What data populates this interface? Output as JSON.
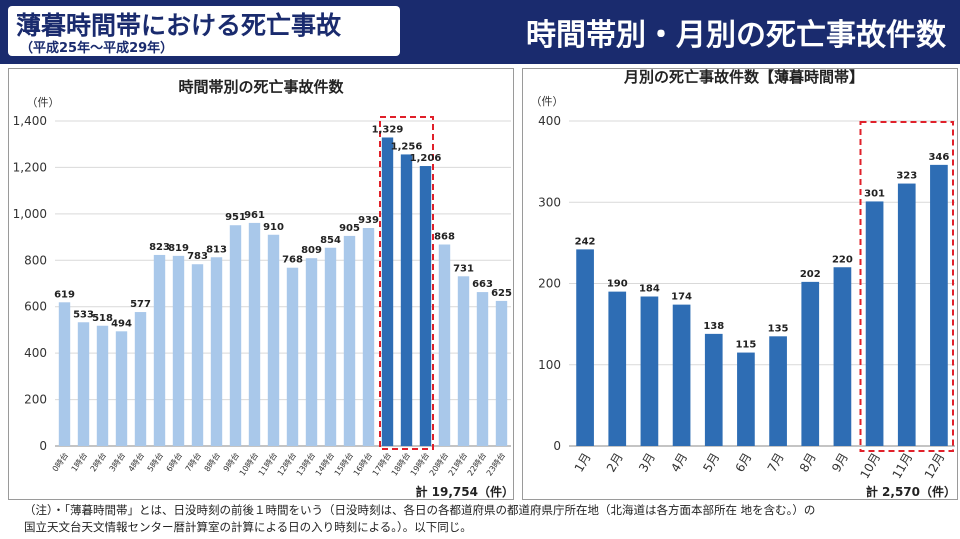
{
  "header": {
    "title": "薄暮時間帯における死亡事故",
    "subtitle": "（平成25年～平成29年）",
    "right_title": "時間帯別・月別の死亡事故件数"
  },
  "chart_data": [
    {
      "type": "bar",
      "title": "時間帯別の死亡事故件数",
      "ylabel": "（件）",
      "ylim": [
        0,
        1400
      ],
      "yticks": [
        0,
        200,
        400,
        600,
        800,
        1000,
        1200,
        1400
      ],
      "ytick_labels": [
        "0",
        "200",
        "400",
        "600",
        "800",
        "1,000",
        "1,200",
        "1,400"
      ],
      "categories": [
        "0時台",
        "1時台",
        "2時台",
        "3時台",
        "4時台",
        "5時台",
        "6時台",
        "7時台",
        "8時台",
        "9時台",
        "10時台",
        "11時台",
        "12時台",
        "13時台",
        "14時台",
        "15時台",
        "16時台",
        "17時台",
        "18時台",
        "19時台",
        "20時台",
        "21時台",
        "22時台",
        "23時台"
      ],
      "values": [
        619,
        533,
        518,
        494,
        577,
        823,
        819,
        783,
        813,
        951,
        961,
        910,
        768,
        809,
        854,
        905,
        939,
        1329,
        1256,
        1206,
        868,
        731,
        663,
        625
      ],
      "value_labels": [
        "619",
        "533",
        "518",
        "494",
        "577",
        "823",
        "819",
        "783",
        "813",
        "951",
        "961",
        "910",
        "768",
        "809",
        "854",
        "905",
        "939",
        "1,329",
        "1,256",
        "1,206",
        "868",
        "731",
        "663",
        "625"
      ],
      "highlight_indices": [
        17,
        18,
        19
      ],
      "total": "計 19,754（件）",
      "colors": {
        "normal": "#a9c8ea",
        "highlight": "#2e6db4",
        "box": "#e0202a"
      }
    },
    {
      "type": "bar",
      "title": "月別の死亡事故件数【薄暮時間帯】",
      "ylabel": "（件）",
      "ylim": [
        0,
        400
      ],
      "yticks": [
        0,
        100,
        200,
        300,
        400
      ],
      "ytick_labels": [
        "0",
        "100",
        "200",
        "300",
        "400"
      ],
      "categories": [
        "1月",
        "2月",
        "3月",
        "4月",
        "5月",
        "6月",
        "7月",
        "8月",
        "9月",
        "10月",
        "11月",
        "12月"
      ],
      "values": [
        242,
        190,
        184,
        174,
        138,
        115,
        135,
        202,
        220,
        301,
        323,
        346
      ],
      "value_labels": [
        "242",
        "190",
        "184",
        "174",
        "138",
        "115",
        "135",
        "202",
        "220",
        "301",
        "323",
        "346"
      ],
      "highlight_indices": [
        9,
        10,
        11
      ],
      "total": "計 2,570（件）",
      "colors": {
        "normal": "#2e6db4",
        "highlight": "#2e6db4",
        "box": "#e0202a"
      }
    }
  ],
  "note": {
    "line1": "（注）・「薄暮時間帯」とは、日没時刻の前後１時間をいう（日没時刻は、各日の各都道府県の都道府県庁所在地（北海道は各方面本部所在 地を含む。）の",
    "line2": "国立天文台天文情報センター暦計算室の計算による日の入り時刻による。）。以下同じ。"
  }
}
